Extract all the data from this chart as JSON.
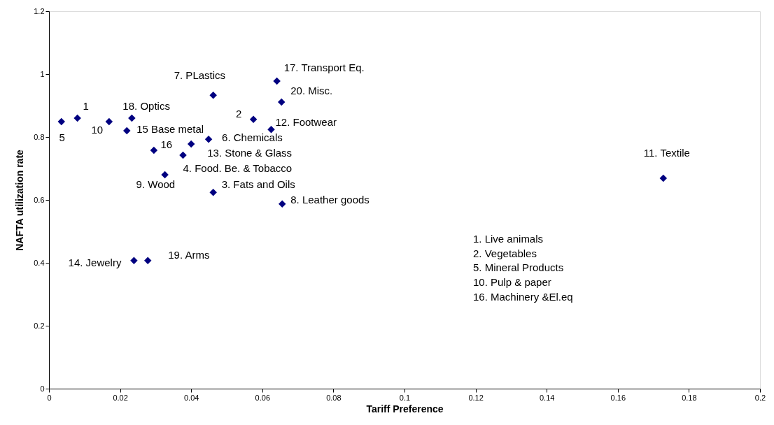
{
  "chart_data": {
    "type": "scatter",
    "xlabel": "Tariff Preference",
    "ylabel": "NAFTA utilization rate",
    "x": [
      0.0035,
      0.008,
      0.0169,
      0.0233,
      0.0219,
      0.0295,
      0.04,
      0.0377,
      0.0326,
      0.0449,
      0.0462,
      0.0462,
      0.0641,
      0.0654,
      0.0575,
      0.0625,
      0.0656,
      0.0239,
      0.0278,
      0.1728
    ],
    "series": [
      {
        "color": "#000080",
        "values": [
          0.849,
          0.86,
          0.849,
          0.86,
          0.82,
          0.758,
          0.778,
          0.742,
          0.68,
          0.793,
          0.933,
          0.624,
          0.978,
          0.911,
          0.856,
          0.824,
          0.587,
          0.407,
          0.407,
          0.669
        ]
      }
    ],
    "marker": "diamond",
    "grid": false,
    "xlim": [
      0,
      0.2
    ],
    "xticks": [
      0,
      0.02,
      0.04,
      0.06,
      0.08,
      0.1,
      0.12,
      0.14,
      0.16,
      0.18,
      0.2
    ],
    "ylim": [
      0,
      1.2
    ],
    "yticks": [
      0,
      0.2,
      0.4,
      0.6,
      0.8,
      1,
      1.2
    ],
    "annotations": [
      {
        "text": "5",
        "x": 0.0035,
        "y": 0.849
      },
      {
        "text": "1",
        "x": 0.008,
        "y": 0.86
      },
      {
        "text": "10",
        "x": 0.0169,
        "y": 0.849
      },
      {
        "text": "18. Optics",
        "x": 0.0233,
        "y": 0.86
      },
      {
        "text": "15 Base metal",
        "x": 0.0219,
        "y": 0.82
      },
      {
        "text": "16",
        "x": 0.0295,
        "y": 0.758
      },
      {
        "text": "13. Stone & Glass",
        "x": 0.04,
        "y": 0.778
      },
      {
        "text": "4. Food. Be. & Tobacco",
        "x": 0.0377,
        "y": 0.742
      },
      {
        "text": "9. Wood",
        "x": 0.0326,
        "y": 0.68
      },
      {
        "text": "6. Chemicals",
        "x": 0.0449,
        "y": 0.793
      },
      {
        "text": "7. PLastics",
        "x": 0.0462,
        "y": 0.933
      },
      {
        "text": "3. Fats and Oils",
        "x": 0.0462,
        "y": 0.624
      },
      {
        "text": "17. Transport Eq.",
        "x": 0.0641,
        "y": 0.978
      },
      {
        "text": "20. Misc.",
        "x": 0.0654,
        "y": 0.911
      },
      {
        "text": "2",
        "x": 0.0575,
        "y": 0.856
      },
      {
        "text": "12. Footwear",
        "x": 0.0625,
        "y": 0.824
      },
      {
        "text": "8. Leather goods",
        "x": 0.0656,
        "y": 0.587
      },
      {
        "text": "14. Jewelry",
        "x": 0.0239,
        "y": 0.407
      },
      {
        "text": "19. Arms",
        "x": 0.0278,
        "y": 0.407
      },
      {
        "text": "11. Textile",
        "x": 0.1728,
        "y": 0.669
      },
      "1.   Live animals",
      "2.  Vegetables",
      "5.   Mineral Products",
      "10.  Pulp & paper",
      "16.  Machinery &El.eq"
    ]
  }
}
